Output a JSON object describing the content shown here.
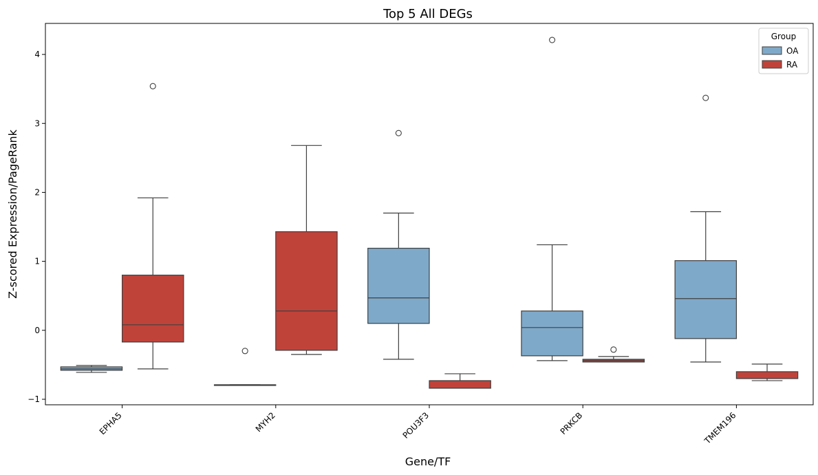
{
  "chart_data": {
    "type": "boxplot",
    "title": "Top 5 All DEGs",
    "xlabel": "Gene/TF",
    "ylabel": "Z-scored Expression/PageRank",
    "categories": [
      "EPHA5",
      "MYH2",
      "POU3F3",
      "PRKCB",
      "TMEM196"
    ],
    "ylim": [
      -1.08,
      4.45
    ],
    "yticks": [
      -1,
      0,
      1,
      2,
      3,
      4
    ],
    "ytick_labels": [
      "−1",
      "0",
      "1",
      "2",
      "3",
      "4"
    ],
    "legend": {
      "title": "Group",
      "position": "top-right"
    },
    "series": [
      {
        "name": "OA",
        "color": "#7fa9c9",
        "boxes": [
          {
            "whislo": -0.61,
            "q1": -0.58,
            "med": -0.56,
            "q3": -0.53,
            "whishi": -0.51,
            "fliers": []
          },
          {
            "whislo": -0.79,
            "q1": -0.79,
            "med": -0.79,
            "q3": -0.79,
            "whishi": -0.79,
            "fliers": [
              -0.3
            ]
          },
          {
            "whislo": -0.42,
            "q1": 0.1,
            "med": 0.47,
            "q3": 1.19,
            "whishi": 1.7,
            "fliers": [
              2.86
            ]
          },
          {
            "whislo": -0.44,
            "q1": -0.37,
            "med": 0.04,
            "q3": 0.28,
            "whishi": 1.24,
            "fliers": [
              4.21
            ]
          },
          {
            "whislo": -0.46,
            "q1": -0.12,
            "med": 0.46,
            "q3": 1.01,
            "whishi": 1.72,
            "fliers": [
              3.37
            ]
          }
        ]
      },
      {
        "name": "RA",
        "color": "#c0433a",
        "boxes": [
          {
            "whislo": -0.56,
            "q1": -0.17,
            "med": 0.08,
            "q3": 0.8,
            "whishi": 1.92,
            "fliers": [
              3.54
            ]
          },
          {
            "whislo": -0.35,
            "q1": -0.29,
            "med": 0.28,
            "q3": 1.43,
            "whishi": 2.68,
            "fliers": []
          },
          {
            "whislo": -0.84,
            "q1": -0.84,
            "med": -0.84,
            "q3": -0.73,
            "whishi": -0.63,
            "fliers": []
          },
          {
            "whislo": -0.46,
            "q1": -0.46,
            "med": -0.44,
            "q3": -0.42,
            "whishi": -0.38,
            "fliers": [
              -0.28
            ]
          },
          {
            "whislo": -0.73,
            "q1": -0.7,
            "med": -0.7,
            "q3": -0.6,
            "whishi": -0.49,
            "fliers": []
          }
        ]
      }
    ]
  }
}
